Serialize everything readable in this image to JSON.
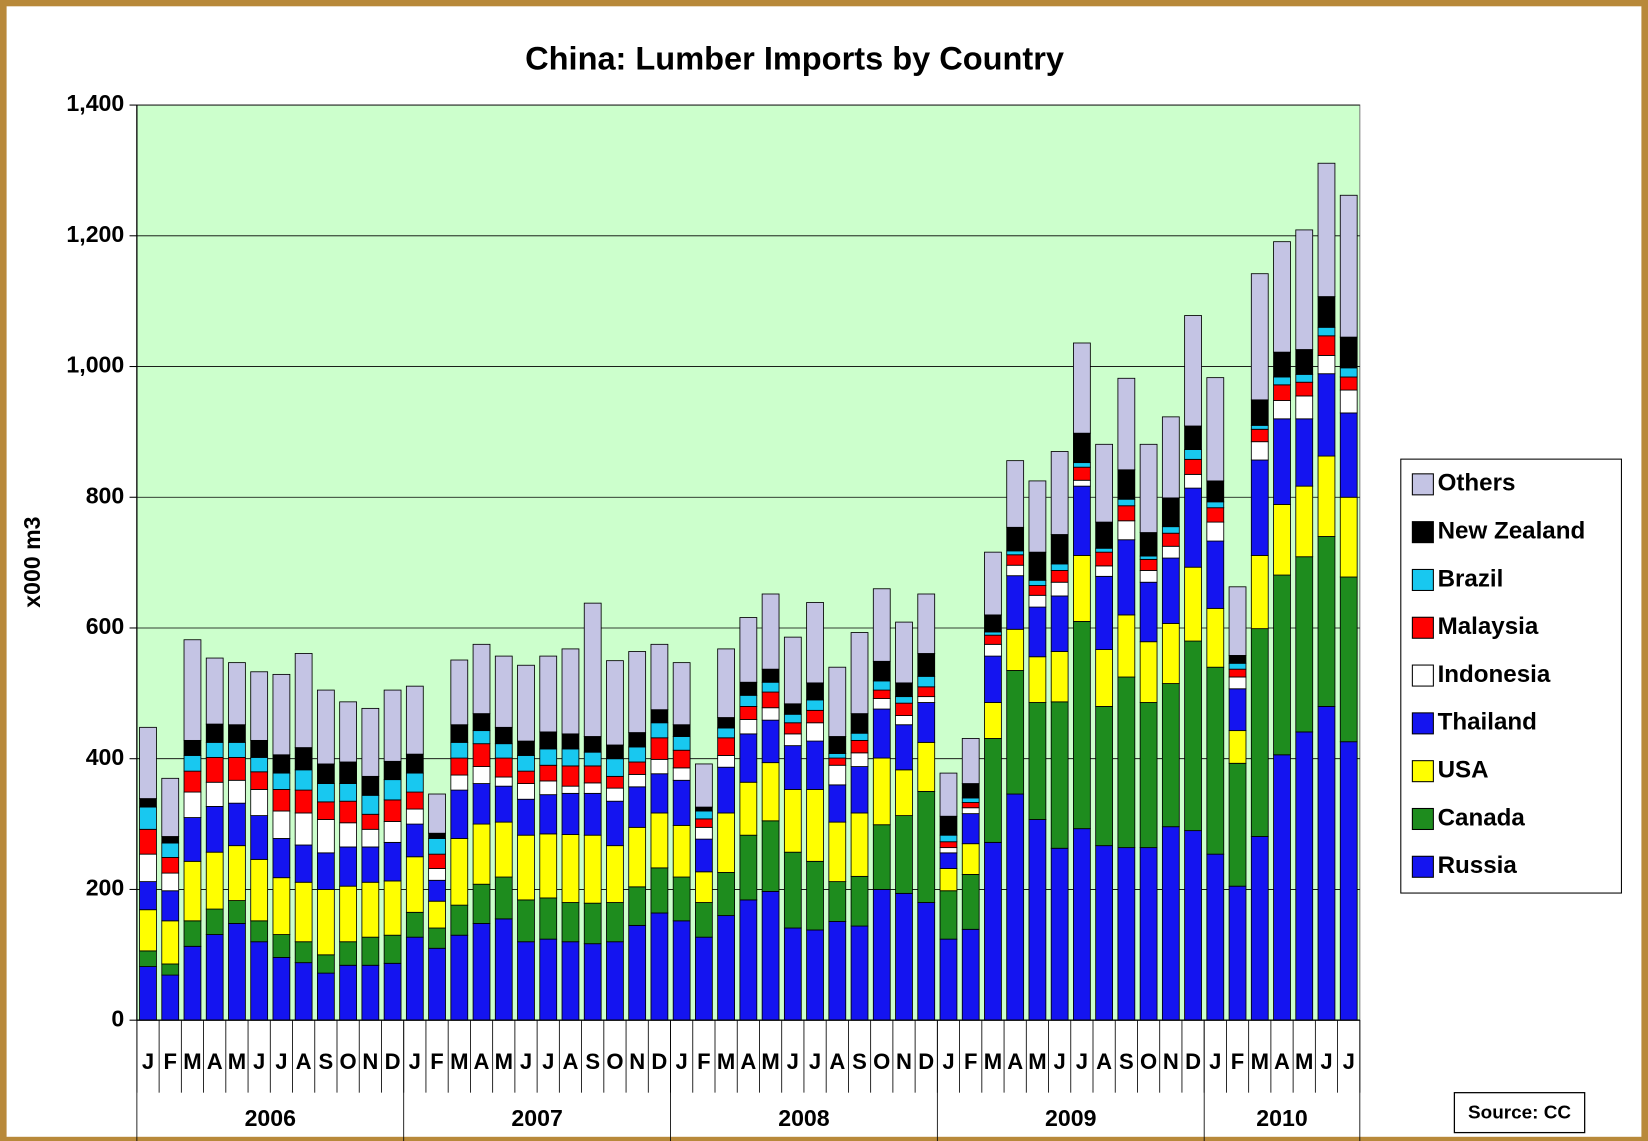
{
  "chart_data": {
    "type": "stacked_bar",
    "title": "China: Lumber Imports by Country",
    "y_label": "x000 m3",
    "source": "Source: CC",
    "groups": [
      {
        "label": "2006",
        "categories": [
          "J",
          "F",
          "M",
          "A",
          "M",
          "J",
          "J",
          "A",
          "S",
          "O",
          "N",
          "D"
        ]
      },
      {
        "label": "2007",
        "categories": [
          "J",
          "F",
          "M",
          "A",
          "M",
          "J",
          "J",
          "A",
          "S",
          "O",
          "N",
          "D"
        ]
      },
      {
        "label": "2008",
        "categories": [
          "J",
          "F",
          "M",
          "A",
          "M",
          "J",
          "J",
          "A",
          "S",
          "O",
          "N",
          "D"
        ]
      },
      {
        "label": "2009",
        "categories": [
          "J",
          "F",
          "M",
          "A",
          "M",
          "J",
          "J",
          "A",
          "S",
          "O",
          "N",
          "D"
        ]
      },
      {
        "label": "2010",
        "categories": [
          "J",
          "F",
          "M",
          "A",
          "M",
          "J",
          "J"
        ]
      }
    ],
    "ylim": [
      0,
      1400
    ],
    "yticks": [
      0,
      200,
      400,
      600,
      800,
      {
        "value": 1000,
        "label": "1,000"
      },
      {
        "value": 1200,
        "label": "1,200"
      },
      {
        "value": 1400,
        "label": "1,400"
      }
    ],
    "grid": true,
    "legend": "right",
    "series": [
      {
        "name": "Russia",
        "color": "#1414f0",
        "values": [
          82,
          69,
          113,
          131,
          148,
          120,
          96,
          88,
          72,
          84,
          84,
          87,
          127,
          110,
          130,
          148,
          155,
          120,
          124,
          120,
          117,
          120,
          145,
          164,
          152,
          127,
          160,
          184,
          197,
          141,
          138,
          151,
          144,
          200,
          194,
          180,
          124,
          139,
          272,
          346,
          307,
          263,
          293,
          267,
          264,
          264,
          296,
          290,
          254,
          205,
          281,
          406,
          441,
          480,
          426
        ]
      },
      {
        "name": "Canada",
        "color": "#1e8c1e",
        "values": [
          24,
          17,
          39,
          39,
          35,
          32,
          35,
          32,
          28,
          36,
          43,
          43,
          38,
          31,
          46,
          60,
          64,
          64,
          63,
          60,
          62,
          60,
          59,
          69,
          67,
          53,
          66,
          99,
          108,
          116,
          105,
          61,
          76,
          99,
          119,
          170,
          74,
          84,
          159,
          189,
          179,
          224,
          317,
          213,
          261,
          222,
          219,
          290,
          286,
          188,
          318,
          275,
          268,
          260,
          252
        ]
      },
      {
        "name": "USA",
        "color": "#ffff00",
        "values": [
          63,
          66,
          91,
          87,
          84,
          94,
          87,
          91,
          100,
          85,
          84,
          83,
          85,
          41,
          102,
          92,
          84,
          99,
          98,
          104,
          104,
          87,
          91,
          84,
          79,
          47,
          91,
          81,
          89,
          96,
          110,
          91,
          97,
          102,
          70,
          75,
          34,
          47,
          55,
          63,
          70,
          77,
          101,
          87,
          95,
          93,
          92,
          113,
          90,
          50,
          112,
          108,
          108,
          123,
          122
        ]
      },
      {
        "name": "Thailand",
        "color": "#1414f0",
        "values": [
          43,
          46,
          67,
          70,
          65,
          67,
          60,
          57,
          56,
          60,
          54,
          59,
          50,
          32,
          74,
          62,
          55,
          55,
          60,
          63,
          64,
          68,
          62,
          60,
          69,
          50,
          70,
          74,
          65,
          67,
          74,
          57,
          71,
          75,
          69,
          61,
          24,
          46,
          71,
          82,
          76,
          85,
          106,
          112,
          115,
          91,
          100,
          121,
          103,
          64,
          146,
          131,
          103,
          126,
          129
        ]
      },
      {
        "name": "Indonesia",
        "color": "#ffffff",
        "values": [
          42,
          27,
          39,
          37,
          35,
          40,
          42,
          49,
          51,
          37,
          27,
          32,
          23,
          18,
          23,
          26,
          14,
          24,
          21,
          11,
          16,
          20,
          19,
          22,
          19,
          18,
          18,
          22,
          19,
          18,
          28,
          30,
          21,
          16,
          14,
          9,
          8,
          9,
          18,
          16,
          18,
          21,
          9,
          16,
          29,
          18,
          18,
          21,
          29,
          18,
          28,
          28,
          35,
          28,
          35
        ]
      },
      {
        "name": "Malaysia",
        "color": "#ff0000",
        "values": [
          38,
          24,
          32,
          38,
          35,
          27,
          33,
          35,
          27,
          33,
          23,
          33,
          26,
          22,
          26,
          35,
          29,
          19,
          24,
          31,
          26,
          18,
          19,
          33,
          27,
          13,
          27,
          20,
          24,
          17,
          19,
          11,
          19,
          13,
          19,
          15,
          9,
          8,
          14,
          16,
          15,
          18,
          20,
          21,
          23,
          17,
          20,
          23,
          22,
          12,
          19,
          24,
          21,
          30,
          20
        ]
      },
      {
        "name": "Brazil",
        "color": "#18c8f0",
        "values": [
          34,
          22,
          24,
          23,
          23,
          22,
          25,
          31,
          28,
          27,
          29,
          31,
          29,
          24,
          24,
          20,
          22,
          24,
          25,
          26,
          21,
          27,
          23,
          23,
          21,
          12,
          15,
          17,
          15,
          13,
          16,
          7,
          11,
          14,
          10,
          16,
          10,
          7,
          5,
          6,
          8,
          10,
          7,
          6,
          10,
          5,
          10,
          15,
          9,
          9,
          6,
          12,
          12,
          13,
          14
        ]
      },
      {
        "name": "New Zealand",
        "color": "#000000",
        "values": [
          13,
          10,
          23,
          28,
          27,
          26,
          28,
          34,
          30,
          33,
          29,
          28,
          29,
          8,
          27,
          26,
          25,
          22,
          26,
          23,
          24,
          21,
          22,
          20,
          18,
          6,
          16,
          20,
          20,
          16,
          26,
          26,
          30,
          30,
          21,
          35,
          29,
          22,
          26,
          36,
          43,
          45,
          45,
          40,
          45,
          36,
          44,
          36,
          32,
          12,
          39,
          38,
          38,
          47,
          47
        ]
      },
      {
        "name": "Others",
        "color": "#c4c4e4",
        "values": [
          109,
          89,
          154,
          101,
          95,
          105,
          123,
          144,
          113,
          92,
          104,
          109,
          104,
          60,
          99,
          106,
          109,
          116,
          116,
          130,
          204,
          129,
          124,
          100,
          95,
          66,
          105,
          99,
          115,
          102,
          123,
          106,
          124,
          111,
          93,
          91,
          66,
          69,
          96,
          102,
          109,
          127,
          138,
          119,
          140,
          135,
          124,
          169,
          158,
          105,
          193,
          169,
          183,
          204,
          217
        ]
      }
    ]
  }
}
